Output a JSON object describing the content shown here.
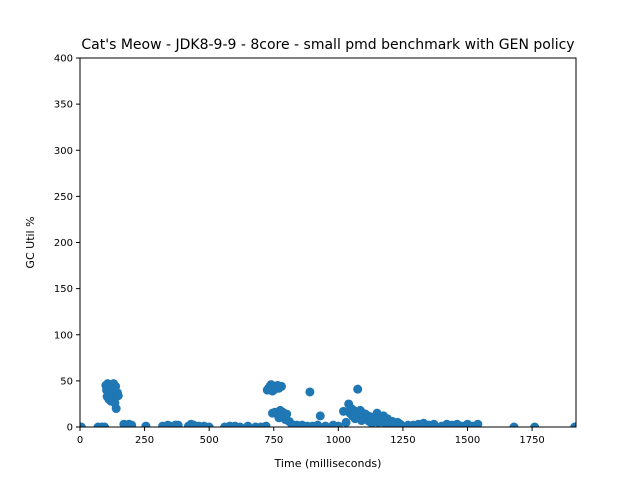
{
  "chart_data": {
    "type": "scatter",
    "title": "Cat's Meow - JDK8-9-9 - 8core -  small pmd benchmark with GEN policy",
    "xlabel": "Time (milliseconds)",
    "ylabel": "GC Util %",
    "xlim": [
      0,
      1920
    ],
    "ylim": [
      0,
      400
    ],
    "xticks": [
      "0",
      "250",
      "500",
      "750",
      "1000",
      "1250",
      "1500",
      "1750"
    ],
    "yticks": [
      "0",
      "50",
      "100",
      "150",
      "200",
      "250",
      "300",
      "350",
      "400"
    ],
    "grid": false,
    "marker_color": "#1f77b4",
    "points": [
      [
        5,
        0
      ],
      [
        70,
        0
      ],
      [
        85,
        0
      ],
      [
        95,
        0
      ],
      [
        100,
        45
      ],
      [
        103,
        40
      ],
      [
        105,
        33
      ],
      [
        107,
        47
      ],
      [
        110,
        38
      ],
      [
        112,
        30
      ],
      [
        115,
        44
      ],
      [
        118,
        36
      ],
      [
        120,
        28
      ],
      [
        122,
        46
      ],
      [
        125,
        42
      ],
      [
        127,
        35
      ],
      [
        128,
        31
      ],
      [
        130,
        47
      ],
      [
        132,
        40
      ],
      [
        135,
        26
      ],
      [
        138,
        44
      ],
      [
        140,
        20
      ],
      [
        142,
        33
      ],
      [
        145,
        37
      ],
      [
        148,
        34
      ],
      [
        170,
        3
      ],
      [
        180,
        2
      ],
      [
        190,
        3
      ],
      [
        200,
        2
      ],
      [
        255,
        1
      ],
      [
        320,
        1
      ],
      [
        340,
        2
      ],
      [
        360,
        1
      ],
      [
        370,
        2
      ],
      [
        380,
        2
      ],
      [
        420,
        1
      ],
      [
        430,
        3
      ],
      [
        440,
        2
      ],
      [
        460,
        1
      ],
      [
        480,
        1
      ],
      [
        500,
        0
      ],
      [
        560,
        0
      ],
      [
        580,
        1
      ],
      [
        600,
        1
      ],
      [
        620,
        0
      ],
      [
        650,
        1
      ],
      [
        680,
        0
      ],
      [
        700,
        0
      ],
      [
        720,
        1
      ],
      [
        725,
        40
      ],
      [
        730,
        42
      ],
      [
        735,
        44
      ],
      [
        740,
        46
      ],
      [
        745,
        39
      ],
      [
        750,
        44
      ],
      [
        755,
        41
      ],
      [
        760,
        43
      ],
      [
        765,
        45
      ],
      [
        770,
        42
      ],
      [
        780,
        44
      ],
      [
        745,
        15
      ],
      [
        755,
        16
      ],
      [
        765,
        14
      ],
      [
        770,
        10
      ],
      [
        775,
        18
      ],
      [
        785,
        16
      ],
      [
        790,
        12
      ],
      [
        795,
        8
      ],
      [
        800,
        14
      ],
      [
        810,
        6
      ],
      [
        820,
        3
      ],
      [
        840,
        2
      ],
      [
        860,
        2
      ],
      [
        880,
        1
      ],
      [
        890,
        38
      ],
      [
        900,
        1
      ],
      [
        920,
        2
      ],
      [
        930,
        12
      ],
      [
        950,
        1
      ],
      [
        980,
        2
      ],
      [
        1000,
        1
      ],
      [
        1020,
        17
      ],
      [
        1030,
        5
      ],
      [
        1040,
        25
      ],
      [
        1045,
        15
      ],
      [
        1050,
        20
      ],
      [
        1055,
        12
      ],
      [
        1060,
        18
      ],
      [
        1065,
        9
      ],
      [
        1070,
        16
      ],
      [
        1075,
        41
      ],
      [
        1080,
        13
      ],
      [
        1085,
        18
      ],
      [
        1090,
        7
      ],
      [
        1095,
        15
      ],
      [
        1100,
        10
      ],
      [
        1105,
        14
      ],
      [
        1110,
        8
      ],
      [
        1115,
        12
      ],
      [
        1120,
        6
      ],
      [
        1125,
        11
      ],
      [
        1130,
        4
      ],
      [
        1140,
        9
      ],
      [
        1145,
        7
      ],
      [
        1150,
        15
      ],
      [
        1155,
        5
      ],
      [
        1160,
        10
      ],
      [
        1170,
        8
      ],
      [
        1175,
        12
      ],
      [
        1180,
        4
      ],
      [
        1190,
        9
      ],
      [
        1200,
        3
      ],
      [
        1210,
        6
      ],
      [
        1220,
        2
      ],
      [
        1230,
        5
      ],
      [
        1240,
        3
      ],
      [
        1270,
        2
      ],
      [
        1290,
        2
      ],
      [
        1310,
        3
      ],
      [
        1330,
        4
      ],
      [
        1350,
        2
      ],
      [
        1370,
        3
      ],
      [
        1400,
        1
      ],
      [
        1420,
        3
      ],
      [
        1440,
        2
      ],
      [
        1460,
        3
      ],
      [
        1480,
        1
      ],
      [
        1500,
        3
      ],
      [
        1520,
        1
      ],
      [
        1540,
        3
      ],
      [
        1680,
        0
      ],
      [
        1760,
        0
      ],
      [
        1915,
        0
      ]
    ]
  }
}
